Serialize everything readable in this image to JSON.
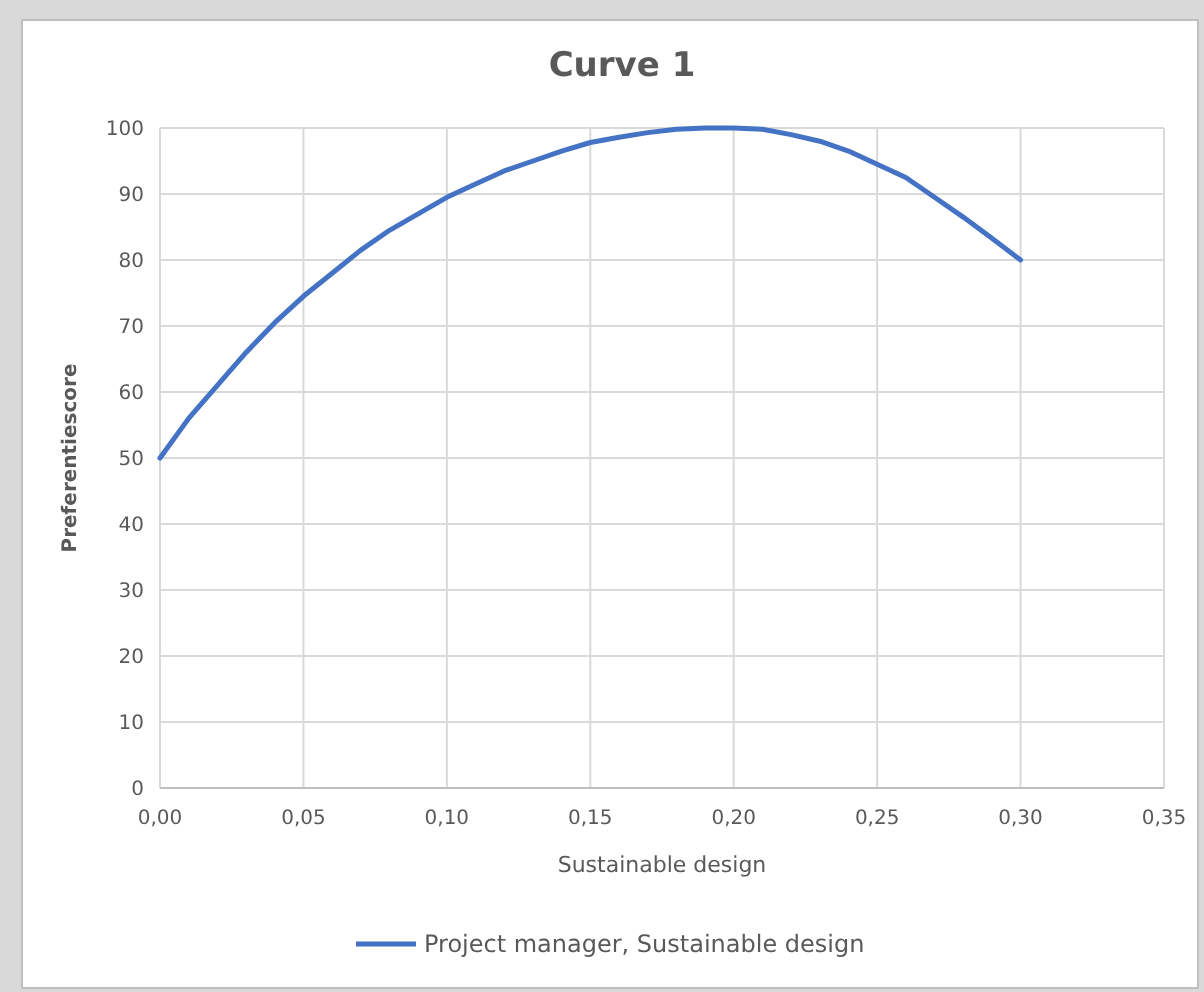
{
  "chart_data": {
    "type": "line",
    "title": "Curve 1",
    "xlabel": "Sustainable design",
    "ylabel": "Preferentiescore",
    "x": [
      0,
      0.01,
      0.02,
      0.03,
      0.04,
      0.05,
      0.06,
      0.07,
      0.08,
      0.09,
      0.1,
      0.11,
      0.12,
      0.13,
      0.14,
      0.15,
      0.16,
      0.17,
      0.18,
      0.19,
      0.2,
      0.21,
      0.22,
      0.23,
      0.24,
      0.25,
      0.26,
      0.27,
      0.28,
      0.29,
      0.3
    ],
    "series": [
      {
        "name": "Project manager, Sustainable design",
        "color": "#4472c4",
        "values": [
          50,
          56,
          61,
          66,
          70.5,
          74.5,
          78,
          81.5,
          84.5,
          87,
          89.5,
          91.5,
          93.5,
          95,
          96.5,
          97.8,
          98.6,
          99.3,
          99.8,
          100,
          100,
          99.8,
          99,
          98,
          96.5,
          94.5,
          92.5,
          89.5,
          86.5,
          83.3,
          80
        ]
      }
    ],
    "xlim": [
      0,
      0.35
    ],
    "xticks": [
      {
        "value": 0,
        "label": "0,00"
      },
      {
        "value": 0.05,
        "label": "0,05"
      },
      {
        "value": 0.1,
        "label": "0,10"
      },
      {
        "value": 0.15,
        "label": "0,15"
      },
      {
        "value": 0.2,
        "label": "0,20"
      },
      {
        "value": 0.25,
        "label": "0,25"
      },
      {
        "value": 0.3,
        "label": "0,30"
      },
      {
        "value": 0.35,
        "label": "0,35"
      }
    ],
    "ylim": [
      0,
      100
    ],
    "yticks": [
      0,
      10,
      20,
      30,
      40,
      50,
      60,
      70,
      80,
      90,
      100
    ],
    "grid": true,
    "legend": "bottom",
    "marker": "none",
    "line_style": "solid"
  }
}
